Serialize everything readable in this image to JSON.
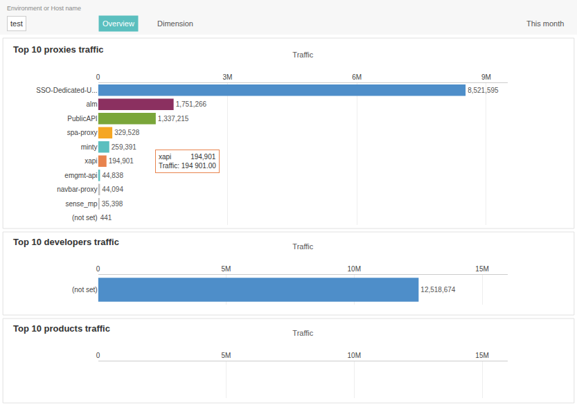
{
  "annotations": [
    "Environment or Host name",
    "test",
    "Overview",
    "Dimension",
    "This month"
  ],
  "chart_data": [
    {
      "type": "bar",
      "title": "Top 10 proxies traffic",
      "orientation": "horizontal",
      "xlabel": "Traffic",
      "categories": [
        "SSO-Dedicated-U...",
        "alm",
        "PublicAPI",
        "spa-proxy",
        "minty",
        "xapi",
        "emgmt-api",
        "navbar-proxy",
        "sense_mp",
        "(not set)"
      ],
      "values": [
        8521595,
        1751266,
        1337215,
        329528,
        259391,
        194901,
        44838,
        44094,
        35398,
        441
      ],
      "value_labels": [
        "8,521,595",
        "1,751,266",
        "1,337,215",
        "329,528",
        "259,391",
        "194,901",
        "44,838",
        "44,094",
        "35,398",
        "441"
      ],
      "data_labels": true,
      "colors": [
        "#4e8ec9",
        "#8b3060",
        "#7aa63a",
        "#f5a623",
        "#5bbfbf",
        "#e8834d",
        "#5bbfbf",
        "#c0c0c0",
        "#c0c0c0",
        "#c0c0c0"
      ],
      "xlim": [
        0,
        9500000
      ],
      "xticks": [
        0,
        {
          "value": 3000000,
          "label": "3M"
        },
        {
          "value": 6000000,
          "label": "6M"
        },
        {
          "value": 9000000,
          "label": "9M"
        }
      ],
      "grid": true,
      "annotations": [
        {
          "text": "xapi          194,901",
          "x": 194901,
          "y": "xapi"
        },
        {
          "text": "Traffic: 194 901.00",
          "x": 194901,
          "y": "xapi"
        }
      ]
    },
    {
      "type": "bar",
      "title": "Top 10 developers traffic",
      "orientation": "horizontal",
      "xlabel": "Traffic",
      "categories": [
        "(not set)"
      ],
      "values": [
        12518674
      ],
      "value_labels": [
        "12,518,674"
      ],
      "data_labels": true,
      "colors": [
        "#4e8ec9"
      ],
      "xlim": [
        0,
        16000000
      ],
      "xticks": [
        0,
        {
          "value": 5000000,
          "label": "5M"
        },
        {
          "value": 10000000,
          "label": "10M"
        },
        {
          "value": 15000000,
          "label": "15M"
        }
      ],
      "grid": true
    },
    {
      "type": "bar",
      "title": "Top 10 products traffic",
      "orientation": "horizontal",
      "xlabel": "Traffic",
      "categories": [],
      "values": [],
      "xlim": [
        0,
        16000000
      ],
      "xticks": [
        0,
        {
          "value": 5000000,
          "label": "5M"
        },
        {
          "value": 10000000,
          "label": "10M"
        },
        {
          "value": 15000000,
          "label": "15M"
        }
      ],
      "grid": true,
      "tick_labels": "x"
    }
  ]
}
